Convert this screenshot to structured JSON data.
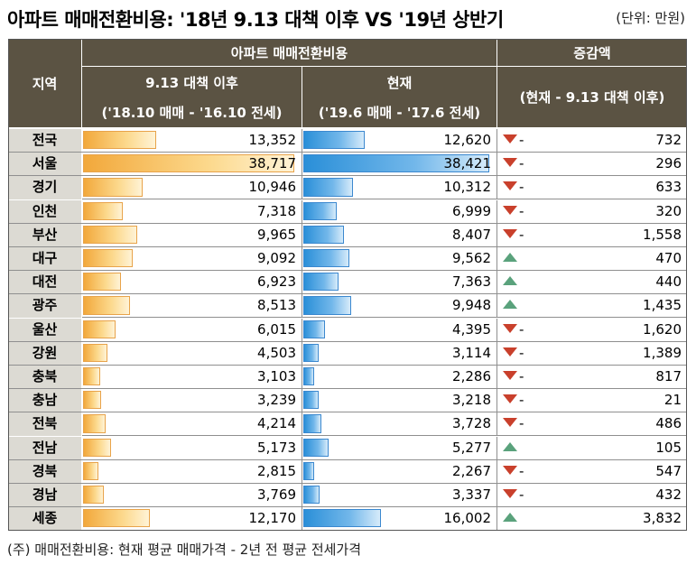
{
  "title": "아파트 매매전환비용: '18년 9.13 대책 이후 VS '19년 상반기",
  "unit": "(단위: 만원)",
  "note": "(주) 매매전환비용: 현재 평균 매매가격 - 2년 전 평균 전세가격",
  "headers": {
    "region": "지역",
    "group": "아파트 매매전환비용",
    "after913": "9.13 대책 이후",
    "after913_sub": "('18.10 매매 - '16.10 전세)",
    "current": "현재",
    "current_sub": "('19.6 매매 - '17.6 전세)",
    "change": "증감액",
    "change_sub": "(현재 - 9.13 대책 이후)"
  },
  "colors": {
    "header_bg": "#5b5343",
    "region_bg": "#dcdad3",
    "bar_orange": "#f2a83b",
    "bar_blue": "#2a8fd8",
    "down": "#c9402c",
    "up": "#5aa27c"
  },
  "chart_data": {
    "type": "table",
    "columns": [
      "지역",
      "9.13 대책 이후",
      "현재",
      "증감액"
    ],
    "rows": [
      {
        "region": "전국",
        "after913": 13352,
        "current": 12620,
        "after913_text": "13,352",
        "current_text": "12,620",
        "dir": "down",
        "sign": "-",
        "change_text": "732"
      },
      {
        "region": "서울",
        "after913": 38717,
        "current": 38421,
        "after913_text": "38,717",
        "current_text": "38,421",
        "dir": "down",
        "sign": "-",
        "change_text": "296"
      },
      {
        "region": "경기",
        "after913": 10946,
        "current": 10312,
        "after913_text": "10,946",
        "current_text": "10,312",
        "dir": "down",
        "sign": "-",
        "change_text": "633"
      },
      {
        "region": "인천",
        "after913": 7318,
        "current": 6999,
        "after913_text": "7,318",
        "current_text": "6,999",
        "dir": "down",
        "sign": "-",
        "change_text": "320"
      },
      {
        "region": "부산",
        "after913": 9965,
        "current": 8407,
        "after913_text": "9,965",
        "current_text": "8,407",
        "dir": "down",
        "sign": "-",
        "change_text": "1,558"
      },
      {
        "region": "대구",
        "after913": 9092,
        "current": 9562,
        "after913_text": "9,092",
        "current_text": "9,562",
        "dir": "up",
        "sign": "",
        "change_text": "470"
      },
      {
        "region": "대전",
        "after913": 6923,
        "current": 7363,
        "after913_text": "6,923",
        "current_text": "7,363",
        "dir": "up",
        "sign": "",
        "change_text": "440"
      },
      {
        "region": "광주",
        "after913": 8513,
        "current": 9948,
        "after913_text": "8,513",
        "current_text": "9,948",
        "dir": "up",
        "sign": "",
        "change_text": "1,435"
      },
      {
        "region": "울산",
        "after913": 6015,
        "current": 4395,
        "after913_text": "6,015",
        "current_text": "4,395",
        "dir": "down",
        "sign": "-",
        "change_text": "1,620"
      },
      {
        "region": "강원",
        "after913": 4503,
        "current": 3114,
        "after913_text": "4,503",
        "current_text": "3,114",
        "dir": "down",
        "sign": "-",
        "change_text": "1,389"
      },
      {
        "region": "충북",
        "after913": 3103,
        "current": 2286,
        "after913_text": "3,103",
        "current_text": "2,286",
        "dir": "down",
        "sign": "-",
        "change_text": "817"
      },
      {
        "region": "충남",
        "after913": 3239,
        "current": 3218,
        "after913_text": "3,239",
        "current_text": "3,218",
        "dir": "down",
        "sign": "-",
        "change_text": "21"
      },
      {
        "region": "전북",
        "after913": 4214,
        "current": 3728,
        "after913_text": "4,214",
        "current_text": "3,728",
        "dir": "down",
        "sign": "-",
        "change_text": "486"
      },
      {
        "region": "전남",
        "after913": 5173,
        "current": 5277,
        "after913_text": "5,173",
        "current_text": "5,277",
        "dir": "up",
        "sign": "",
        "change_text": "105"
      },
      {
        "region": "경북",
        "after913": 2815,
        "current": 2267,
        "after913_text": "2,815",
        "current_text": "2,267",
        "dir": "down",
        "sign": "-",
        "change_text": "547"
      },
      {
        "region": "경남",
        "after913": 3769,
        "current": 3337,
        "after913_text": "3,769",
        "current_text": "3,337",
        "dir": "down",
        "sign": "-",
        "change_text": "432"
      },
      {
        "region": "세종",
        "after913": 12170,
        "current": 16002,
        "after913_text": "12,170",
        "current_text": "16,002",
        "dir": "up",
        "sign": "",
        "change_text": "3,832"
      }
    ]
  }
}
